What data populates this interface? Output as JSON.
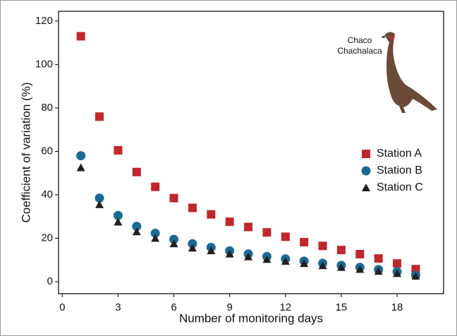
{
  "chart_data": {
    "type": "scatter",
    "xlabel": "Number of monitoring days",
    "ylabel": "Coefficient of variation (%)",
    "annotation": [
      "Chaco",
      "Chachalaca"
    ],
    "x": [
      1,
      2,
      3,
      4,
      5,
      6,
      7,
      8,
      9,
      10,
      11,
      12,
      13,
      14,
      15,
      16,
      17,
      18,
      19
    ],
    "series": [
      {
        "name": "Station A",
        "color": "#c0272d",
        "marker": "square",
        "values": [
          113,
          76,
          60.5,
          50.5,
          43.7,
          38.5,
          34,
          31,
          27.6,
          25.2,
          22.7,
          20.7,
          18.2,
          16.5,
          14.6,
          12.7,
          10.7,
          8.4,
          5.8
        ]
      },
      {
        "name": "Station B",
        "color": "#1b6a96",
        "marker": "circle",
        "values": [
          58,
          38.5,
          30.5,
          25.5,
          22.3,
          19.5,
          17.5,
          15.8,
          14.2,
          12.8,
          11.6,
          10.5,
          9.5,
          8.5,
          7.5,
          6.6,
          5.6,
          4.6,
          3
        ]
      },
      {
        "name": "Station C",
        "color": "#231f20",
        "marker": "triangle",
        "values": [
          52.5,
          35.5,
          27.5,
          23,
          20,
          17.5,
          15.5,
          14.3,
          12.8,
          11.5,
          10.3,
          9.4,
          8.4,
          7.4,
          6.6,
          5.7,
          4.8,
          3.8,
          2.6
        ]
      }
    ],
    "xlim": [
      -0.2,
      20.5
    ],
    "xticks": [
      0,
      3,
      6,
      9,
      12,
      15,
      18
    ],
    "ylim": [
      -5.5,
      124.5
    ],
    "yticks": [
      0,
      20,
      40,
      60,
      80,
      100,
      120
    ],
    "grid": false,
    "legend": "upper right"
  }
}
